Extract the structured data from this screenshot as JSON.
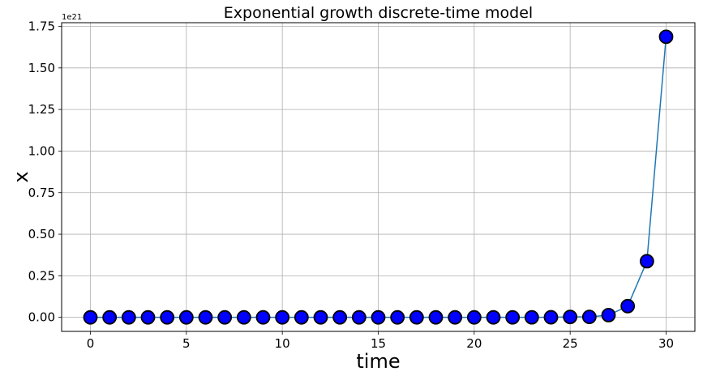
{
  "chart_data": {
    "type": "line",
    "title": "Exponential growth discrete-time model",
    "xlabel": "time",
    "ylabel": "x",
    "y_offset_label": "1e21",
    "x": [
      0,
      1,
      2,
      3,
      4,
      5,
      6,
      7,
      8,
      9,
      10,
      11,
      12,
      13,
      14,
      15,
      16,
      17,
      18,
      19,
      20,
      21,
      22,
      23,
      24,
      25,
      26,
      27,
      28,
      29,
      30
    ],
    "series": [
      {
        "values": [
          0,
          0,
          0,
          0,
          0,
          0,
          0,
          0,
          0,
          0,
          0,
          0,
          0,
          0,
          0,
          0,
          0,
          0,
          0,
          0,
          0,
          0,
          0,
          0.0001,
          0.0005,
          0.0025,
          0.0027,
          0.0135,
          0.0675,
          0.3375,
          1.6875
        ],
        "line_color": "#1f77b4",
        "marker_color": "#0000ff",
        "marker_edge_color": "#000000"
      }
    ],
    "xlim": [
      -1.5,
      31.5
    ],
    "ylim": [
      -0.0844,
      1.772
    ],
    "x_ticks": [
      0,
      5,
      10,
      15,
      20,
      25,
      30
    ],
    "x_tick_labels": [
      "0",
      "5",
      "10",
      "15",
      "20",
      "25",
      "30"
    ],
    "y_ticks": [
      0,
      0.25,
      0.5,
      0.75,
      1.0,
      1.25,
      1.5,
      1.75
    ],
    "y_tick_labels": [
      "0.00",
      "0.25",
      "0.50",
      "0.75",
      "1.00",
      "1.25",
      "1.50",
      "1.75"
    ],
    "grid": true,
    "legend": "none"
  }
}
